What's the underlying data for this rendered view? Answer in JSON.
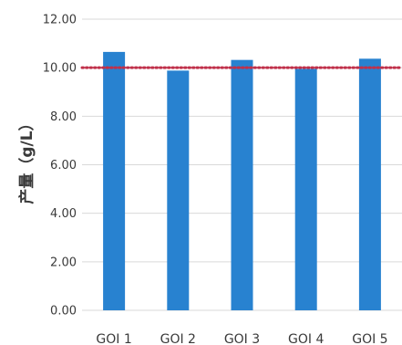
{
  "chart_data": {
    "type": "bar",
    "categories": [
      "GOI 1",
      "GOI 2",
      "GOI 3",
      "GOI 4",
      "GOI 5"
    ],
    "values": [
      10.65,
      9.88,
      10.32,
      9.95,
      10.37
    ],
    "ylabel": "产量（g/L）",
    "ylim": [
      0,
      12
    ],
    "yticks": [
      "0.00",
      "2.00",
      "4.00",
      "6.00",
      "8.00",
      "10.00",
      "12.00"
    ],
    "reference_line": {
      "value": 10.0,
      "style": "dotted"
    },
    "grid": true,
    "legend": false,
    "colors": {
      "bar": "#2882D0",
      "reference_line": "#C0304A",
      "grid": "#D9D9D9"
    }
  }
}
